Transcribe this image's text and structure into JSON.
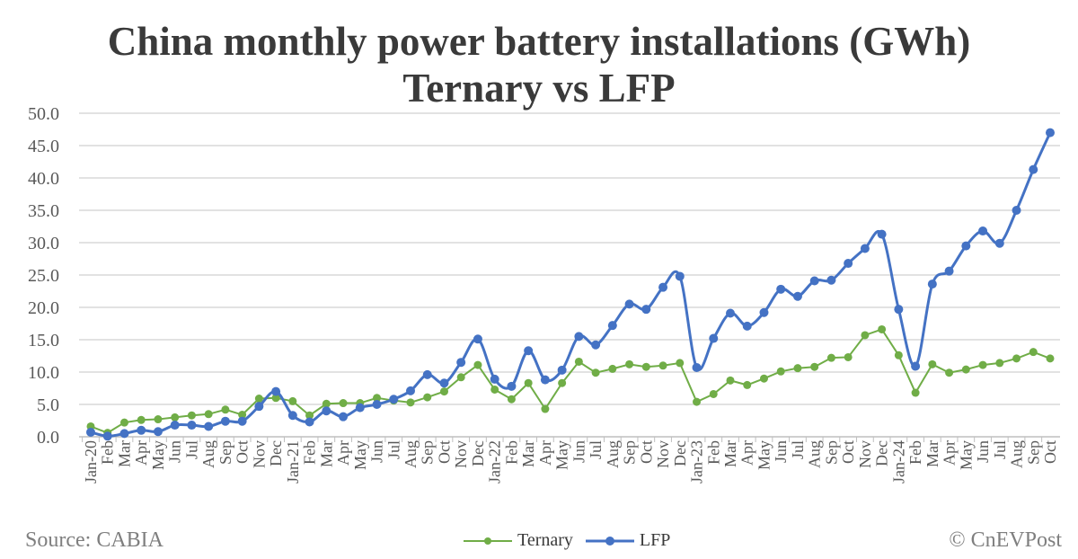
{
  "chart_data": {
    "type": "line",
    "title": "China monthly power battery installations (GWh)",
    "subtitle": "Ternary vs LFP",
    "ylim": [
      0,
      50
    ],
    "yticks": [
      "0.0",
      "5.0",
      "10.0",
      "15.0",
      "20.0",
      "25.0",
      "30.0",
      "35.0",
      "40.0",
      "45.0",
      "50.0"
    ],
    "grid": true,
    "legend": "bottom",
    "categories": [
      "Jan-20",
      "Feb",
      "Mar",
      "Apr",
      "May",
      "Jun",
      "Jul",
      "Aug",
      "Sep",
      "Oct",
      "Nov",
      "Dec",
      "Jan-21",
      "Feb",
      "Mar",
      "Apr",
      "May",
      "Jun",
      "Jul",
      "Aug",
      "Sep",
      "Oct",
      "Nov",
      "Dec",
      "Jan-22",
      "Feb",
      "Mar",
      "Apr",
      "May",
      "Jun",
      "Jul",
      "Aug",
      "Sep",
      "Oct",
      "Nov",
      "Dec",
      "Jan-23",
      "Feb",
      "Mar",
      "Apr",
      "May",
      "Jun",
      "Jul",
      "Aug",
      "Sep",
      "Oct",
      "Nov",
      "Dec",
      "Jan-24",
      "Feb",
      "Mar",
      "Apr",
      "May",
      "Jun",
      "Jul",
      "Aug",
      "Sep",
      "Oct"
    ],
    "series": [
      {
        "name": "Ternary",
        "color": "#70ad47",
        "values": [
          1.6,
          0.6,
          2.2,
          2.6,
          2.7,
          3.0,
          3.3,
          3.5,
          4.2,
          3.4,
          5.9,
          6.0,
          5.5,
          3.3,
          5.1,
          5.2,
          5.2,
          6.0,
          5.6,
          5.3,
          6.1,
          7.0,
          9.2,
          11.1,
          7.3,
          5.8,
          8.3,
          4.3,
          8.3,
          11.6,
          9.9,
          10.5,
          11.2,
          10.8,
          11.0,
          11.4,
          5.4,
          6.6,
          8.7,
          8.0,
          9.0,
          10.1,
          10.6,
          10.8,
          12.2,
          12.3,
          15.7,
          16.6,
          12.6,
          6.8,
          11.2,
          9.9,
          10.4,
          11.1,
          11.4,
          12.1,
          13.1,
          12.1
        ]
      },
      {
        "name": "LFP",
        "color": "#4472c4",
        "values": [
          0.7,
          0.1,
          0.5,
          1.0,
          0.8,
          1.8,
          1.8,
          1.6,
          2.4,
          2.4,
          4.7,
          7.0,
          3.3,
          2.3,
          4.0,
          3.1,
          4.5,
          5.0,
          5.8,
          7.1,
          9.6,
          8.3,
          11.5,
          15.1,
          8.9,
          7.8,
          13.3,
          8.8,
          10.3,
          15.5,
          14.2,
          17.2,
          20.5,
          19.7,
          23.1,
          24.8,
          10.7,
          15.2,
          19.1,
          17.1,
          19.2,
          22.8,
          21.7,
          24.1,
          24.2,
          26.8,
          29.1,
          31.3,
          19.7,
          10.9,
          23.6,
          25.6,
          29.5,
          31.8,
          29.9,
          35.0,
          41.3,
          47.0
        ]
      }
    ]
  },
  "footer": {
    "source": "Source: CABIA",
    "copyright": "© CnEVPost"
  }
}
